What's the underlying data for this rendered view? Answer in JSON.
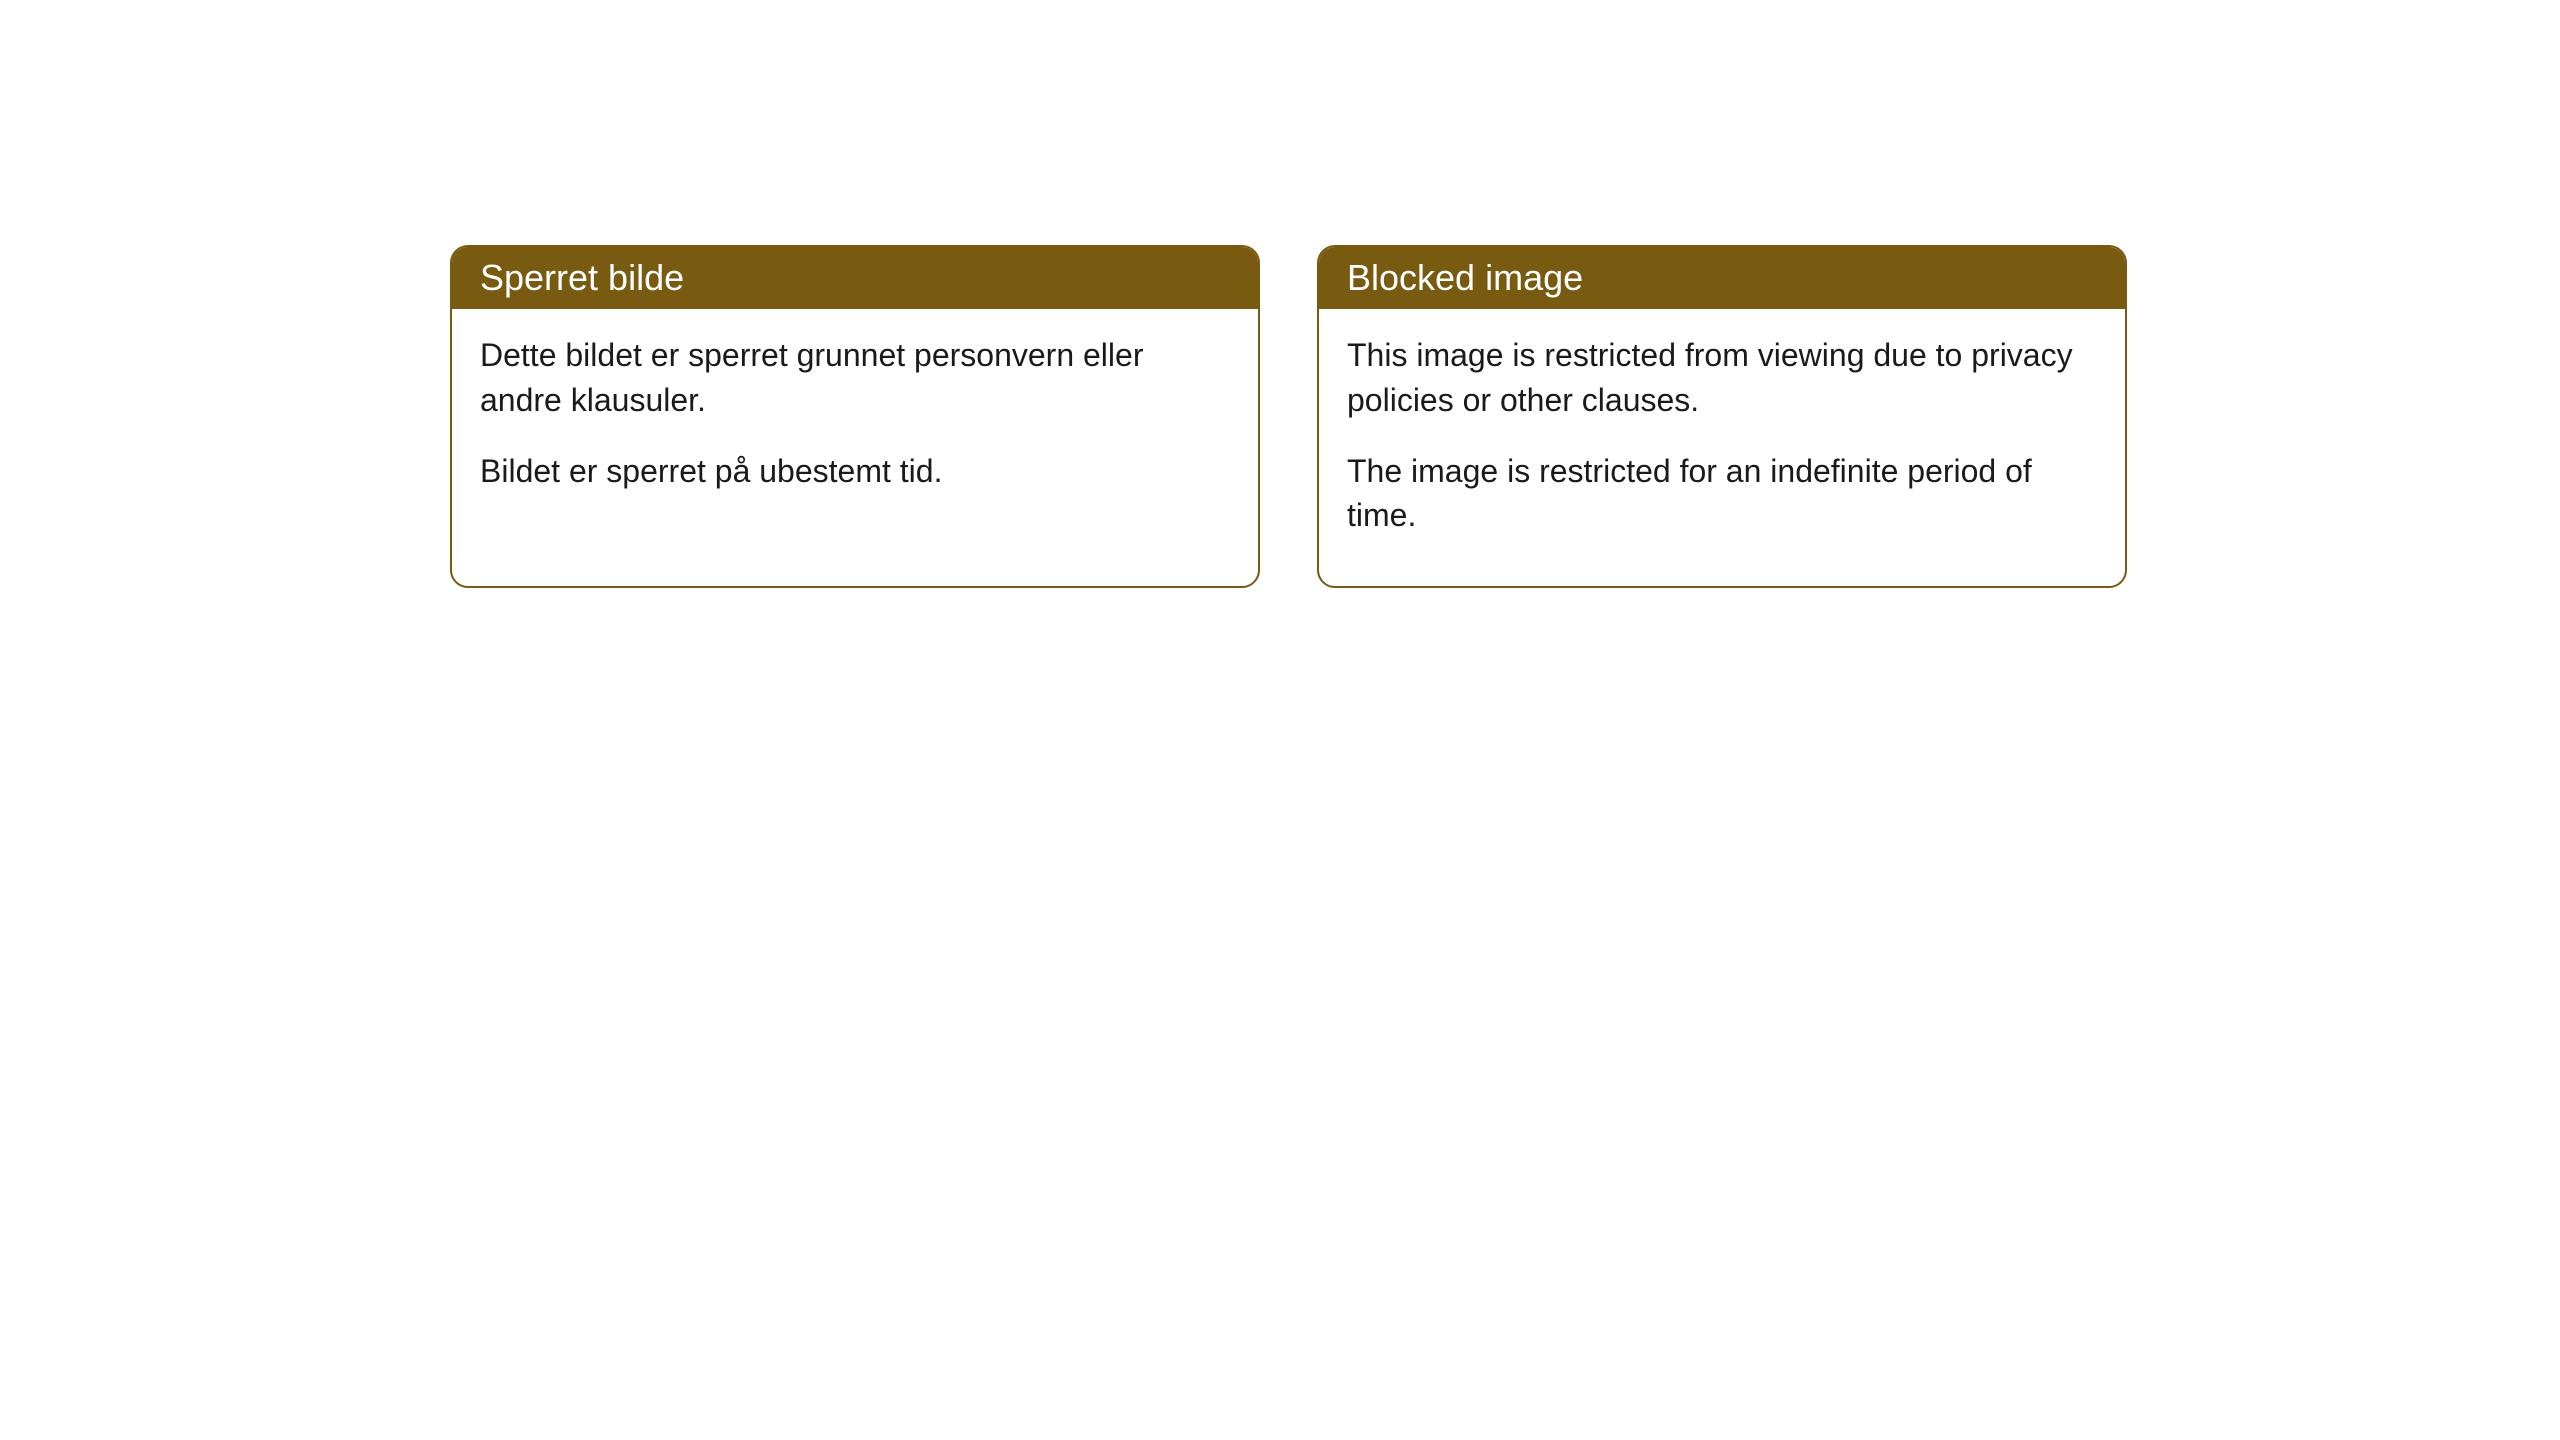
{
  "cards": [
    {
      "title": "Sperret bilde",
      "paragraph1": "Dette bildet er sperret grunnet personvern eller andre klausuler.",
      "paragraph2": "Bildet er sperret på ubestemt tid."
    },
    {
      "title": "Blocked image",
      "paragraph1": "This image is restricted from viewing due to privacy policies or other clauses.",
      "paragraph2": "The image is restricted for an indefinite period of time."
    }
  ],
  "styling": {
    "header_background": "#785b10",
    "header_text_color": "#ffffff",
    "border_color": "#785b10",
    "body_background": "#ffffff",
    "body_text_color": "#1a1a1a",
    "border_radius": 18,
    "header_fontsize": 36,
    "body_fontsize": 32
  }
}
